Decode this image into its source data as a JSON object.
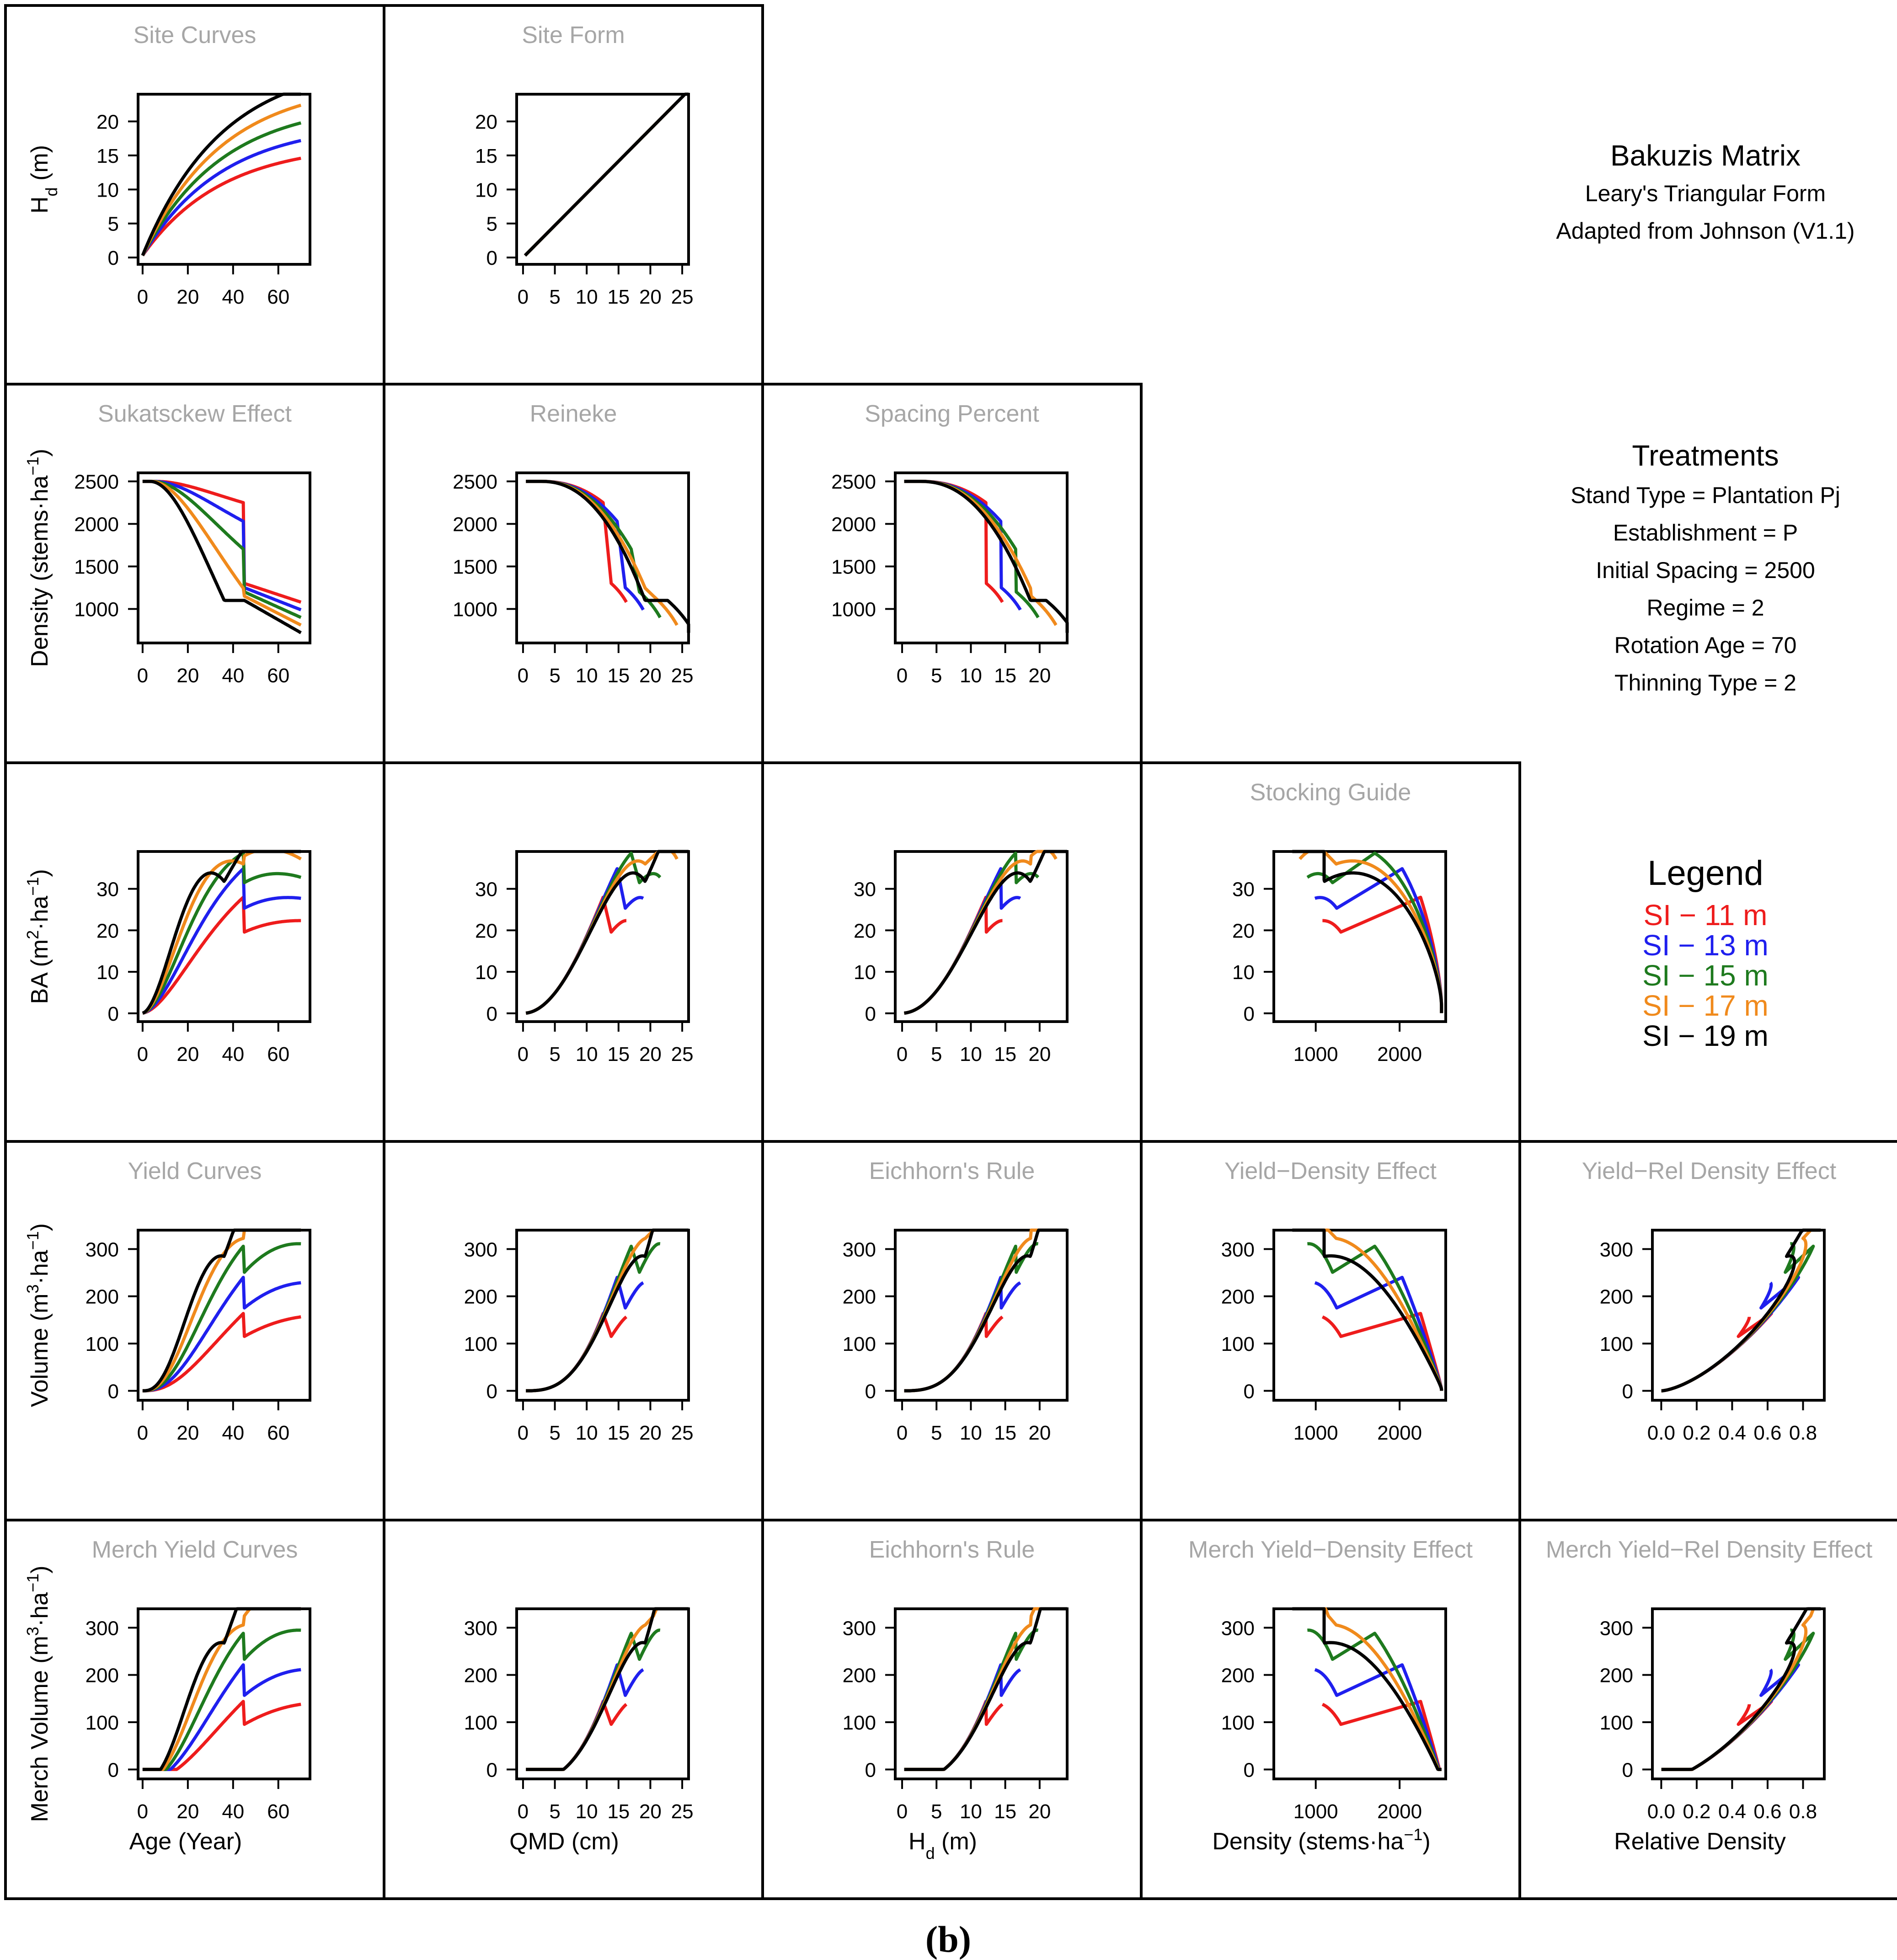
{
  "figure": {
    "caption": "(b)",
    "info_block": {
      "title": "Bakuzis Matrix",
      "lines": [
        "Leary's Triangular Form",
        "Adapted from Johnson (V1.1)"
      ]
    },
    "treatments": {
      "title": "Treatments",
      "lines": [
        "Stand Type = Plantation Pj",
        "Establishment = P",
        "Initial Spacing = 2500",
        "Regime = 2",
        "Rotation Age = 70",
        "Thinning Type = 2"
      ]
    },
    "legend": {
      "title": "Legend",
      "entries": [
        {
          "prefix": "SI −",
          "label": "11 m",
          "color": "#ee1c1c"
        },
        {
          "prefix": "SI −",
          "label": "13 m",
          "color": "#1f1fee"
        },
        {
          "prefix": "SI −",
          "label": "15 m",
          "color": "#1e7a1e"
        },
        {
          "prefix": "SI −",
          "label": "17 m",
          "color": "#f08a1c"
        },
        {
          "prefix": "SI −",
          "label": "19 m",
          "color": "#000000"
        }
      ]
    }
  },
  "chart_data": [
    {
      "id": "p11",
      "type": "line",
      "row": 1,
      "col": 1,
      "title": "Site Curves",
      "ylabel_parts": [
        "H",
        "d",
        " (m)"
      ],
      "xlabel": "",
      "xlim": [
        -2,
        74
      ],
      "ylim": [
        -1,
        24
      ],
      "xticks": [
        0,
        20,
        40,
        60
      ],
      "yticks": [
        0,
        5,
        10,
        15,
        20
      ],
      "kind": "site_age"
    },
    {
      "id": "p12",
      "type": "line",
      "row": 1,
      "col": 2,
      "title": "Site Form",
      "xlim": [
        -1,
        26
      ],
      "ylim": [
        -1,
        24
      ],
      "xticks": [
        0,
        5,
        10,
        15,
        20,
        25
      ],
      "yticks": [
        0,
        5,
        10,
        15,
        20
      ],
      "kind": "form"
    },
    {
      "id": "p21",
      "type": "line",
      "row": 2,
      "col": 1,
      "title": "Sukatsckew Effect",
      "ylabel_parts": [
        "Density (stems·ha",
        "−1",
        ")"
      ],
      "xlim": [
        -2,
        74
      ],
      "ylim": [
        600,
        2600
      ],
      "xticks": [
        0,
        20,
        40,
        60
      ],
      "yticks": [
        1000,
        1500,
        2000,
        2500
      ],
      "kind": "dens_age"
    },
    {
      "id": "p22",
      "type": "line",
      "row": 2,
      "col": 2,
      "title": "Reineke",
      "xlim": [
        -1,
        26
      ],
      "ylim": [
        600,
        2600
      ],
      "xticks": [
        0,
        5,
        10,
        15,
        20,
        25
      ],
      "yticks": [
        1000,
        1500,
        2000,
        2500
      ],
      "kind": "dens_qmd"
    },
    {
      "id": "p23",
      "type": "line",
      "row": 2,
      "col": 3,
      "title": "Spacing Percent",
      "xlim": [
        -1,
        24
      ],
      "ylim": [
        600,
        2600
      ],
      "xticks": [
        0,
        5,
        10,
        15,
        20
      ],
      "yticks": [
        1000,
        1500,
        2000,
        2500
      ],
      "kind": "dens_hd"
    },
    {
      "id": "p31",
      "type": "line",
      "row": 3,
      "col": 1,
      "title": "",
      "ylabel_parts": [
        "BA (m",
        "2",
        "·ha",
        "−1",
        ")"
      ],
      "xlim": [
        -2,
        74
      ],
      "ylim": [
        -2,
        39
      ],
      "xticks": [
        0,
        20,
        40,
        60
      ],
      "yticks": [
        0,
        10,
        20,
        30
      ],
      "kind": "ba_age"
    },
    {
      "id": "p32",
      "type": "line",
      "row": 3,
      "col": 2,
      "title": "",
      "xlim": [
        -1,
        26
      ],
      "ylim": [
        -2,
        39
      ],
      "xticks": [
        0,
        5,
        10,
        15,
        20,
        25
      ],
      "yticks": [
        0,
        10,
        20,
        30
      ],
      "kind": "ba_qmd"
    },
    {
      "id": "p33",
      "type": "line",
      "row": 3,
      "col": 3,
      "title": "",
      "xlim": [
        -1,
        24
      ],
      "ylim": [
        -2,
        39
      ],
      "xticks": [
        0,
        5,
        10,
        15,
        20
      ],
      "yticks": [
        0,
        10,
        20,
        30
      ],
      "kind": "ba_hd"
    },
    {
      "id": "p34",
      "type": "line",
      "row": 3,
      "col": 4,
      "title": "Stocking Guide",
      "xlim": [
        500,
        2550
      ],
      "ylim": [
        -2,
        39
      ],
      "xticks": [
        1000,
        2000
      ],
      "yticks": [
        0,
        10,
        20,
        30
      ],
      "kind": "ba_dens"
    },
    {
      "id": "p41",
      "type": "line",
      "row": 4,
      "col": 1,
      "title": "Yield Curves",
      "ylabel_parts": [
        "Volume (m",
        "3",
        "·ha",
        "−1",
        ")"
      ],
      "xlim": [
        -2,
        74
      ],
      "ylim": [
        -20,
        340
      ],
      "xticks": [
        0,
        20,
        40,
        60
      ],
      "yticks": [
        0,
        100,
        200,
        300
      ],
      "kind": "vol_age"
    },
    {
      "id": "p42",
      "type": "line",
      "row": 4,
      "col": 2,
      "title": "",
      "xlim": [
        -1,
        26
      ],
      "ylim": [
        -20,
        340
      ],
      "xticks": [
        0,
        5,
        10,
        15,
        20,
        25
      ],
      "yticks": [
        0,
        100,
        200,
        300
      ],
      "kind": "vol_qmd"
    },
    {
      "id": "p43",
      "type": "line",
      "row": 4,
      "col": 3,
      "title": "Eichhorn's Rule",
      "xlim": [
        -1,
        24
      ],
      "ylim": [
        -20,
        340
      ],
      "xticks": [
        0,
        5,
        10,
        15,
        20
      ],
      "yticks": [
        0,
        100,
        200,
        300
      ],
      "kind": "vol_hd"
    },
    {
      "id": "p44",
      "type": "line",
      "row": 4,
      "col": 4,
      "title": "Yield−Density Effect",
      "xlim": [
        500,
        2550
      ],
      "ylim": [
        -20,
        340
      ],
      "xticks": [
        1000,
        2000
      ],
      "yticks": [
        0,
        100,
        200,
        300
      ],
      "kind": "vol_dens"
    },
    {
      "id": "p45",
      "type": "line",
      "row": 4,
      "col": 5,
      "title": "Yield−Rel Density Effect",
      "xlim": [
        -0.05,
        0.92
      ],
      "ylim": [
        -20,
        340
      ],
      "xticks": [
        0.0,
        0.2,
        0.4,
        0.6,
        0.8
      ],
      "xtick_labels": [
        "0.0",
        "0.2",
        "0.4",
        "0.6",
        "0.8"
      ],
      "yticks": [
        0,
        100,
        200,
        300
      ],
      "kind": "vol_rd"
    },
    {
      "id": "p51",
      "type": "line",
      "row": 5,
      "col": 1,
      "title": "Merch Yield Curves",
      "ylabel_parts": [
        "Merch Volume (m",
        "3",
        "·ha",
        "−1",
        ")"
      ],
      "xlabel_parts": [
        "Age (Year)"
      ],
      "xlim": [
        -2,
        74
      ],
      "ylim": [
        -20,
        340
      ],
      "xticks": [
        0,
        20,
        40,
        60
      ],
      "yticks": [
        0,
        100,
        200,
        300
      ],
      "kind": "mvol_age"
    },
    {
      "id": "p52",
      "type": "line",
      "row": 5,
      "col": 2,
      "title": "",
      "xlabel_parts": [
        "QMD (cm)"
      ],
      "xlim": [
        -1,
        26
      ],
      "ylim": [
        -20,
        340
      ],
      "xticks": [
        0,
        5,
        10,
        15,
        20,
        25
      ],
      "yticks": [
        0,
        100,
        200,
        300
      ],
      "kind": "mvol_qmd"
    },
    {
      "id": "p53",
      "type": "line",
      "row": 5,
      "col": 3,
      "title": "Eichhorn's Rule",
      "xlabel_parts": [
        "H",
        "d",
        " (m)"
      ],
      "xlim": [
        -1,
        24
      ],
      "ylim": [
        -20,
        340
      ],
      "xticks": [
        0,
        5,
        10,
        15,
        20
      ],
      "yticks": [
        0,
        100,
        200,
        300
      ],
      "kind": "mvol_hd"
    },
    {
      "id": "p54",
      "type": "line",
      "row": 5,
      "col": 4,
      "title": "Merch Yield−Density Effect",
      "xlabel_parts": [
        "Density (stems·ha",
        "−1",
        ")"
      ],
      "xlim": [
        500,
        2550
      ],
      "ylim": [
        -20,
        340
      ],
      "xticks": [
        1000,
        2000
      ],
      "yticks": [
        0,
        100,
        200,
        300
      ],
      "kind": "mvol_dens"
    },
    {
      "id": "p55",
      "type": "line",
      "row": 5,
      "col": 5,
      "title": "Merch Yield−Rel Density Effect",
      "xlabel_parts": [
        "Relative Density"
      ],
      "xlim": [
        -0.05,
        0.92
      ],
      "ylim": [
        -20,
        340
      ],
      "xticks": [
        0.0,
        0.2,
        0.4,
        0.6,
        0.8
      ],
      "xtick_labels": [
        "0.0",
        "0.2",
        "0.4",
        "0.6",
        "0.8"
      ],
      "yticks": [
        0,
        100,
        200,
        300
      ],
      "kind": "mvol_rd"
    }
  ],
  "series_params": [
    {
      "name": "SI − 11 m",
      "color": "#ee1c1c",
      "site_index": 11,
      "thin_age": 45
    },
    {
      "name": "SI − 13 m",
      "color": "#1f1fee",
      "site_index": 13,
      "thin_age": 45
    },
    {
      "name": "SI − 15 m",
      "color": "#1e7a1e",
      "site_index": 15,
      "thin_age": 45
    },
    {
      "name": "SI − 17 m",
      "color": "#f08a1c",
      "site_index": 17,
      "thin_age": 45
    },
    {
      "name": "SI − 19 m",
      "color": "#000000",
      "site_index": 19,
      "thin_age": 45
    }
  ]
}
